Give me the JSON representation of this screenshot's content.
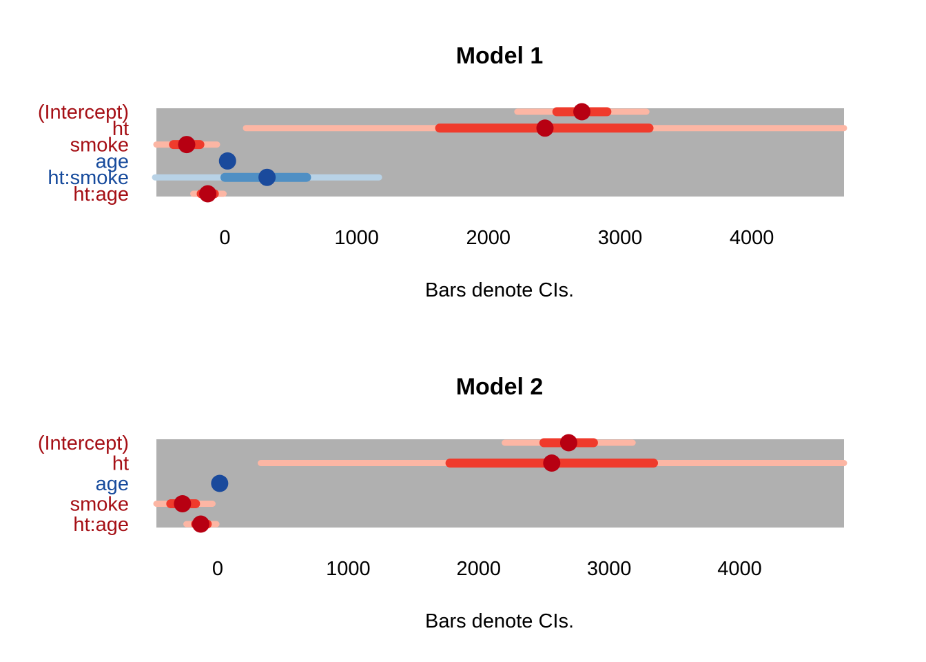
{
  "colors": {
    "panel": "#b0b0b0",
    "positive": "#a50f15",
    "positive_point": "#b70012",
    "positive_inner": "#ef3b2c",
    "positive_outer": "#fcb6a4",
    "negative": "#164a9c",
    "negative_point": "#1a4a9c",
    "negative_inner": "#4f8fc4",
    "negative_outer": "#b8d2e6"
  },
  "chart_data": [
    {
      "type": "dot-and-whisker",
      "title": "Model 1",
      "xlabel": "Bars denote CIs.",
      "xlim": [
        -520,
        4700
      ],
      "xticks": [
        "0",
        "1000",
        "2000",
        "3000",
        "4000"
      ],
      "terms": [
        {
          "name": "(Intercept)",
          "estimate": 2710,
          "ci_inner": [
            2520,
            2900
          ],
          "ci_outer": [
            2220,
            3200
          ]
        },
        {
          "name": "ht",
          "estimate": 2430,
          "ci_inner": [
            1630,
            3220
          ],
          "ci_outer": [
            160,
            4700
          ]
        },
        {
          "name": "smoke",
          "estimate": -290,
          "ci_inner": [
            -390,
            -190
          ],
          "ci_outer": [
            -520,
            -60
          ]
        },
        {
          "name": "age",
          "estimate": 20,
          "ci_inner": [
            10,
            30
          ],
          "ci_outer": [
            5,
            35
          ]
        },
        {
          "name": "ht:smoke",
          "estimate": 320,
          "ci_inner": [
            0,
            620
          ],
          "ci_outer": [
            -530,
            1170
          ]
        },
        {
          "name": "ht:age",
          "estimate": -130,
          "ci_inner": [
            -180,
            -80
          ],
          "ci_outer": [
            -240,
            -10
          ]
        }
      ]
    },
    {
      "type": "dot-and-whisker",
      "title": "Model 2",
      "xlabel": "Bars denote CIs.",
      "xlim": [
        -470,
        4800
      ],
      "xticks": [
        "0",
        "1000",
        "2000",
        "3000",
        "4000"
      ],
      "terms": [
        {
          "name": "(Intercept)",
          "estimate": 2690,
          "ci_inner": [
            2500,
            2880
          ],
          "ci_outer": [
            2200,
            3180
          ]
        },
        {
          "name": "ht",
          "estimate": 2560,
          "ci_inner": [
            1780,
            3340
          ],
          "ci_outer": [
            330,
            4800
          ]
        },
        {
          "name": "age",
          "estimate": 15,
          "ci_inner": [
            5,
            25
          ],
          "ci_outer": [
            0,
            30
          ]
        },
        {
          "name": "smoke",
          "estimate": -270,
          "ci_inner": [
            -360,
            -170
          ],
          "ci_outer": [
            -470,
            -40
          ]
        },
        {
          "name": "ht:age",
          "estimate": -130,
          "ci_inner": [
            -170,
            -80
          ],
          "ci_outer": [
            -240,
            -10
          ]
        }
      ]
    }
  ]
}
